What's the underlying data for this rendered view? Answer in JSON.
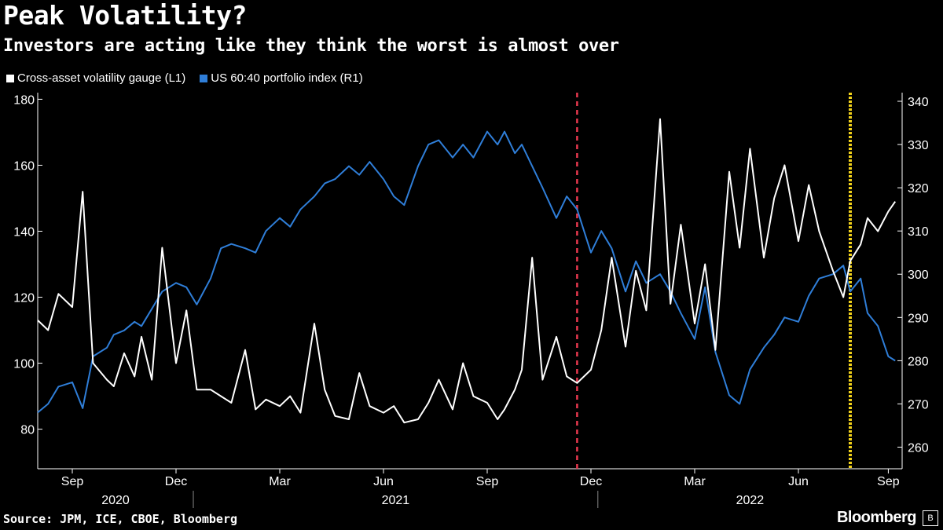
{
  "title": "Peak Volatility?",
  "subtitle": "Investors are acting like they think the worst is almost over",
  "source": "Source: JPM, ICE, CBOE, Bloomberg",
  "brand": "Bloomberg",
  "chart_data": {
    "type": "line",
    "title": "Peak Volatility?",
    "subtitle": "Investors are acting like they think the worst is almost over",
    "legend": [
      "Cross-asset volatility gauge (L1)",
      "US 60:40 portfolio index (R1)"
    ],
    "colors": {
      "volatility": "#ffffff",
      "portfolio": "#2f7ed8",
      "dec_line": "#e8384f",
      "aug_line": "#f2d21b"
    },
    "x_month_labels": [
      "Sep",
      "Dec",
      "Mar",
      "Jun",
      "Sep",
      "Dec",
      "Mar",
      "Jun",
      "Sep"
    ],
    "x_year_labels": [
      "2020",
      "2021",
      "2022"
    ],
    "left_axis": {
      "ylim": [
        68,
        182
      ],
      "ticks": [
        80,
        100,
        120,
        140,
        160,
        180
      ]
    },
    "right_axis": {
      "ylim": [
        255,
        342
      ],
      "ticks": [
        260,
        270,
        280,
        290,
        300,
        310,
        320,
        330,
        340
      ]
    },
    "vertical_markers": [
      {
        "label": "Dec 2021",
        "month_index": 15.6,
        "style": "red-dashed"
      },
      {
        "label": "Aug 2022",
        "month_index": 23.5,
        "style": "yellow-dotted"
      }
    ],
    "x_month_index_note": "month_index 0 = Aug 2020 start; Sep 2020 = 1",
    "series": [
      {
        "name": "Cross-asset volatility gauge (L1)",
        "axis": "left",
        "x": [
          0,
          0.3,
          0.6,
          1.0,
          1.3,
          1.6,
          2.0,
          2.2,
          2.5,
          2.8,
          3.0,
          3.3,
          3.6,
          4.0,
          4.3,
          4.6,
          5.0,
          5.3,
          5.6,
          6.0,
          6.3,
          6.6,
          7.0,
          7.3,
          7.6,
          8.0,
          8.3,
          8.6,
          9.0,
          9.3,
          9.6,
          10.0,
          10.3,
          10.6,
          11.0,
          11.3,
          11.6,
          12.0,
          12.3,
          12.6,
          13.0,
          13.3,
          13.5,
          13.8,
          14.0,
          14.3,
          14.6,
          15.0,
          15.3,
          15.6,
          16.0,
          16.3,
          16.6,
          17.0,
          17.3,
          17.6,
          18.0,
          18.3,
          18.6,
          19.0,
          19.3,
          19.6,
          20.0,
          20.3,
          20.6,
          21.0,
          21.3,
          21.6,
          22.0,
          22.3,
          22.6,
          23.0,
          23.3,
          23.5,
          23.8,
          24.0,
          24.3,
          24.6,
          24.8
        ],
        "values": [
          113,
          110,
          121,
          117,
          152,
          100,
          95,
          93,
          103,
          96,
          108,
          95,
          135,
          100,
          116,
          92,
          92,
          90,
          88,
          104,
          86,
          89,
          87,
          90,
          85,
          112,
          92,
          84,
          83,
          97,
          87,
          85,
          87,
          82,
          83,
          88,
          95,
          86,
          100,
          90,
          88,
          83,
          86,
          92,
          98,
          132,
          95,
          108,
          96,
          94,
          98,
          110,
          132,
          105,
          128,
          116,
          174,
          118,
          142,
          112,
          130,
          104,
          158,
          135,
          165,
          132,
          150,
          160,
          137,
          154,
          140,
          128,
          120,
          131,
          136,
          144,
          140,
          146,
          149
        ]
      },
      {
        "name": "US 60:40 portfolio index (R1)",
        "axis": "right",
        "x": [
          0,
          0.3,
          0.6,
          1.0,
          1.3,
          1.6,
          2.0,
          2.2,
          2.5,
          2.8,
          3.0,
          3.3,
          3.6,
          4.0,
          4.3,
          4.6,
          5.0,
          5.3,
          5.6,
          6.0,
          6.3,
          6.6,
          7.0,
          7.3,
          7.6,
          8.0,
          8.3,
          8.6,
          9.0,
          9.3,
          9.6,
          10.0,
          10.3,
          10.6,
          11.0,
          11.3,
          11.6,
          12.0,
          12.3,
          12.6,
          13.0,
          13.3,
          13.5,
          13.8,
          14.0,
          14.3,
          14.6,
          15.0,
          15.3,
          15.6,
          16.0,
          16.3,
          16.6,
          17.0,
          17.3,
          17.6,
          18.0,
          18.3,
          18.6,
          19.0,
          19.3,
          19.6,
          20.0,
          20.3,
          20.6,
          21.0,
          21.3,
          21.6,
          22.0,
          22.3,
          22.6,
          23.0,
          23.3,
          23.5,
          23.8,
          24.0,
          24.3,
          24.6,
          24.8
        ],
        "values": [
          268,
          270,
          274,
          275,
          269,
          281,
          283,
          286,
          287,
          289,
          288,
          292,
          296,
          298,
          297,
          293,
          299,
          306,
          307,
          306,
          305,
          310,
          313,
          311,
          315,
          318,
          321,
          322,
          325,
          323,
          326,
          322,
          318,
          316,
          325,
          330,
          331,
          327,
          330,
          327,
          333,
          330,
          333,
          328,
          330,
          325,
          320,
          313,
          318,
          315,
          305,
          310,
          306,
          296,
          303,
          298,
          300,
          296,
          291,
          285,
          297,
          282,
          272,
          270,
          278,
          283,
          286,
          290,
          289,
          295,
          299,
          300,
          302,
          296,
          299,
          291,
          288,
          281,
          280
        ]
      }
    ]
  }
}
